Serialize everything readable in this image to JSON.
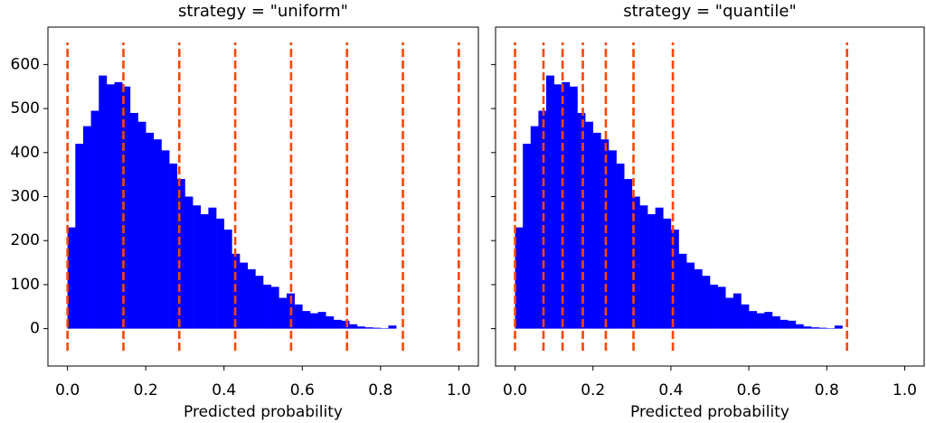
{
  "chart_data": [
    {
      "type": "histogram",
      "title": "strategy = \"uniform\"",
      "xlabel": "Predicted probability",
      "bins": [
        0,
        0.02,
        0.04,
        0.06,
        0.08,
        0.1,
        0.12,
        0.14,
        0.16,
        0.18,
        0.2,
        0.22,
        0.24,
        0.26,
        0.28,
        0.3,
        0.32,
        0.34,
        0.36,
        0.38,
        0.4,
        0.42,
        0.44,
        0.46,
        0.48,
        0.5,
        0.52,
        0.54,
        0.56,
        0.58,
        0.6,
        0.62,
        0.64,
        0.66,
        0.68,
        0.7,
        0.72,
        0.74,
        0.76,
        0.78,
        0.8,
        0.82,
        0.84
      ],
      "values": [
        230,
        420,
        460,
        495,
        575,
        555,
        560,
        550,
        490,
        470,
        445,
        430,
        405,
        375,
        340,
        300,
        280,
        260,
        275,
        250,
        225,
        170,
        150,
        135,
        120,
        100,
        95,
        70,
        80,
        55,
        40,
        35,
        38,
        28,
        20,
        18,
        10,
        5,
        3,
        2,
        1,
        7
      ],
      "color": "#0000ff",
      "vlines": [
        0,
        0.1429,
        0.2857,
        0.4286,
        0.5714,
        0.7143,
        0.8571,
        1.0
      ],
      "vline_color": "#ff4500",
      "vline_range": [
        -50,
        650
      ],
      "xlim": [
        -0.05,
        1.05
      ],
      "xticks": [
        {
          "value": 0,
          "label": "0.0"
        },
        0.2,
        0.4,
        0.6,
        0.8,
        {
          "value": 1,
          "label": "1.0"
        }
      ],
      "ylim": [
        -85,
        685
      ],
      "yticks": [
        0,
        100,
        200,
        300,
        400,
        500,
        600
      ],
      "ytick_labels": true
    },
    {
      "type": "histogram",
      "title": "strategy = \"quantile\"",
      "xlabel": "Predicted probability",
      "bins": [
        0,
        0.02,
        0.04,
        0.06,
        0.08,
        0.1,
        0.12,
        0.14,
        0.16,
        0.18,
        0.2,
        0.22,
        0.24,
        0.26,
        0.28,
        0.3,
        0.32,
        0.34,
        0.36,
        0.38,
        0.4,
        0.42,
        0.44,
        0.46,
        0.48,
        0.5,
        0.52,
        0.54,
        0.56,
        0.58,
        0.6,
        0.62,
        0.64,
        0.66,
        0.68,
        0.7,
        0.72,
        0.74,
        0.76,
        0.78,
        0.8,
        0.82,
        0.84
      ],
      "values": [
        230,
        420,
        460,
        495,
        575,
        555,
        560,
        550,
        490,
        470,
        445,
        430,
        405,
        375,
        340,
        300,
        280,
        260,
        275,
        250,
        225,
        170,
        150,
        135,
        120,
        100,
        95,
        70,
        80,
        55,
        40,
        35,
        38,
        28,
        20,
        18,
        10,
        5,
        3,
        2,
        1,
        7
      ],
      "color": "#0000ff",
      "vlines": [
        0,
        0.073,
        0.122,
        0.174,
        0.233,
        0.304,
        0.405,
        0.852
      ],
      "vline_color": "#ff4500",
      "vline_range": [
        -50,
        650
      ],
      "xlim": [
        -0.05,
        1.05
      ],
      "xticks": [
        {
          "value": 0,
          "label": "0.0"
        },
        0.2,
        0.4,
        0.6,
        0.8,
        {
          "value": 1,
          "label": "1.0"
        }
      ],
      "ylim": [
        -85,
        685
      ],
      "yticks": [
        0,
        100,
        200,
        300,
        400,
        500,
        600
      ],
      "ytick_labels": false
    }
  ]
}
